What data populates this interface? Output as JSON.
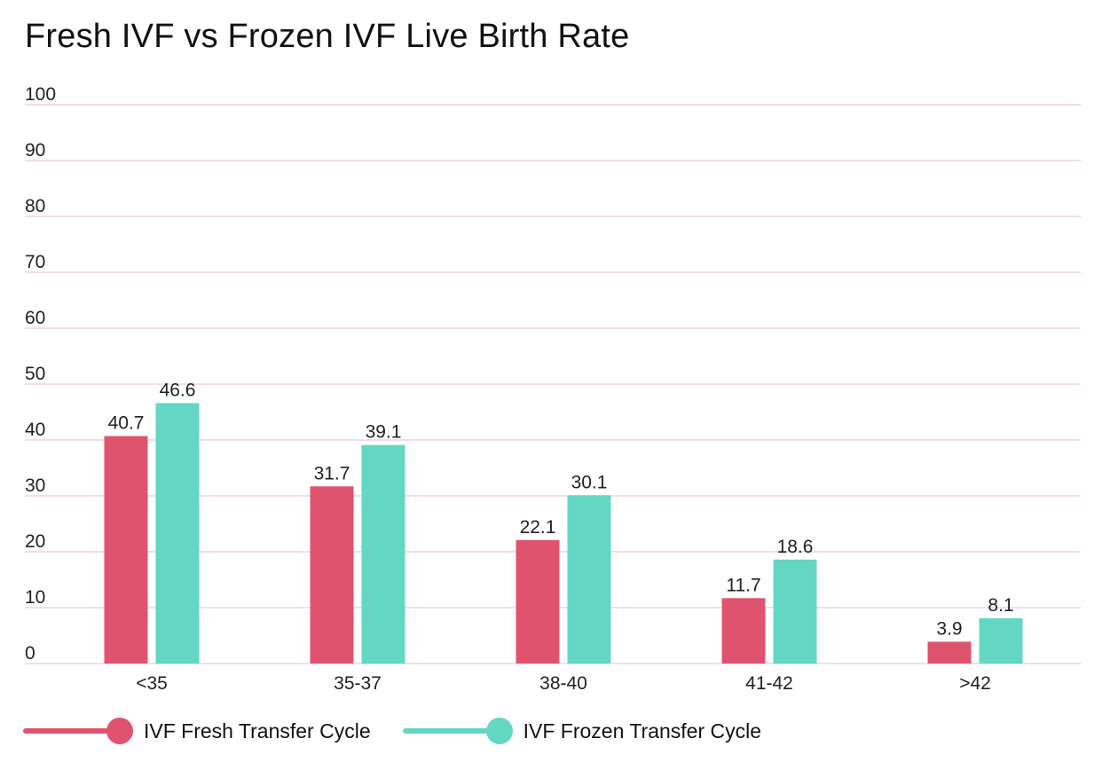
{
  "chart_data": {
    "type": "bar",
    "title": "Fresh IVF vs Frozen IVF Live Birth Rate",
    "xlabel": "",
    "ylabel": "",
    "ylim": [
      0,
      100
    ],
    "yticks": [
      0,
      10,
      20,
      30,
      40,
      50,
      60,
      70,
      80,
      90,
      100
    ],
    "grid": true,
    "legend_position": "bottom-left",
    "categories": [
      "<35",
      "35-37",
      "38-40",
      "41-42",
      ">42"
    ],
    "series": [
      {
        "name": "IVF Fresh Transfer Cycle",
        "color": "#E0536F",
        "values": [
          40.7,
          31.7,
          22.1,
          11.7,
          3.9
        ]
      },
      {
        "name": "IVF Frozen Transfer Cycle",
        "color": "#63D6C4",
        "values": [
          46.6,
          39.1,
          30.1,
          18.6,
          8.1
        ]
      }
    ],
    "data_labels": true,
    "gridline_color": "#F3DCEC"
  }
}
